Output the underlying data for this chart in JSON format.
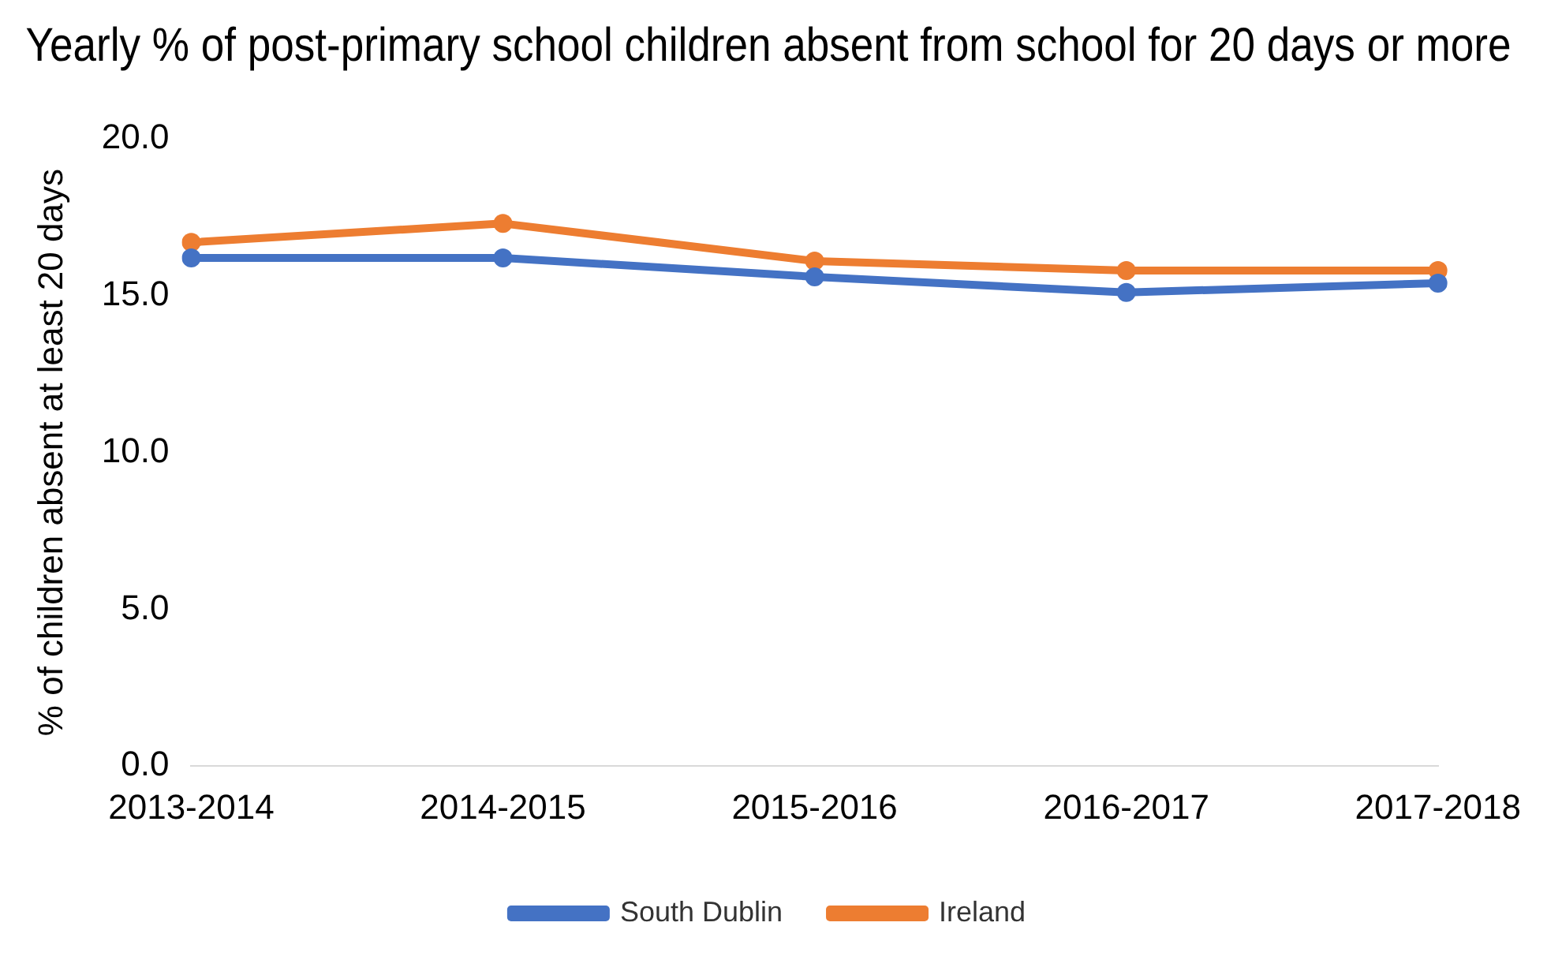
{
  "chart_data": {
    "type": "line",
    "title": "Yearly % of post-primary school children absent from school for 20 days or more",
    "ylabel": "% of children absent at least 20 days",
    "categories": [
      "2013-2014",
      "2014-2015",
      "2015-2016",
      "2016-2017",
      "2017-2018"
    ],
    "series": [
      {
        "name": "South Dublin",
        "color": "#4472c4",
        "values": [
          16.2,
          16.2,
          15.6,
          15.1,
          15.4
        ]
      },
      {
        "name": "Ireland",
        "color": "#ed7d31",
        "values": [
          16.7,
          17.3,
          16.1,
          15.8,
          15.8
        ]
      }
    ],
    "ylim": [
      0,
      20
    ],
    "yticks": [
      {
        "value": 0,
        "label": "0.0"
      },
      {
        "value": 5,
        "label": "5.0"
      },
      {
        "value": 10,
        "label": "10.0"
      },
      {
        "value": 15,
        "label": "15.0"
      },
      {
        "value": 20,
        "label": "20.0"
      }
    ],
    "grid": false,
    "legend": "bottom",
    "marker": "circle",
    "line_style": "solid"
  }
}
